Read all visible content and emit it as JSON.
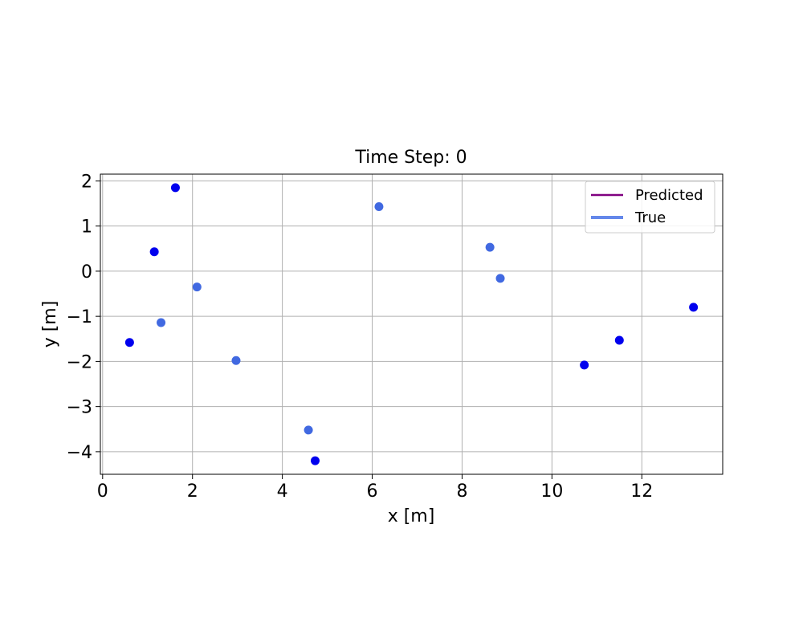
{
  "chart_data": {
    "type": "scatter",
    "title": "Time Step: 0",
    "xlabel": "x [m]",
    "ylabel": "y [m]",
    "xlim": [
      -0.05,
      13.8
    ],
    "ylim": [
      -4.5,
      2.15
    ],
    "xticks": [
      0,
      2,
      4,
      6,
      8,
      10,
      12
    ],
    "yticks": [
      2,
      1,
      0,
      -1,
      -2,
      -3,
      -4
    ],
    "grid": true,
    "legend": {
      "placement": "top-right",
      "entries": [
        {
          "name": "Predicted",
          "color": "#800080"
        },
        {
          "name": "True",
          "color": "#6488ea"
        }
      ]
    },
    "series": [
      {
        "color": "#0000ee",
        "points": [
          {
            "x": 1.62,
            "y": 1.85
          },
          {
            "x": 1.15,
            "y": 0.43
          },
          {
            "x": 0.6,
            "y": -1.58
          },
          {
            "x": 4.73,
            "y": -4.2
          },
          {
            "x": 10.72,
            "y": -2.08
          },
          {
            "x": 11.5,
            "y": -1.53
          },
          {
            "x": 13.15,
            "y": -0.8
          }
        ]
      },
      {
        "color": "#4169e1",
        "points": [
          {
            "x": 2.1,
            "y": -0.35
          },
          {
            "x": 1.3,
            "y": -1.14
          },
          {
            "x": 2.97,
            "y": -1.98
          },
          {
            "x": 4.58,
            "y": -3.52
          },
          {
            "x": 6.15,
            "y": 1.43
          },
          {
            "x": 8.62,
            "y": 0.53
          },
          {
            "x": 8.85,
            "y": -0.16
          }
        ]
      }
    ]
  }
}
